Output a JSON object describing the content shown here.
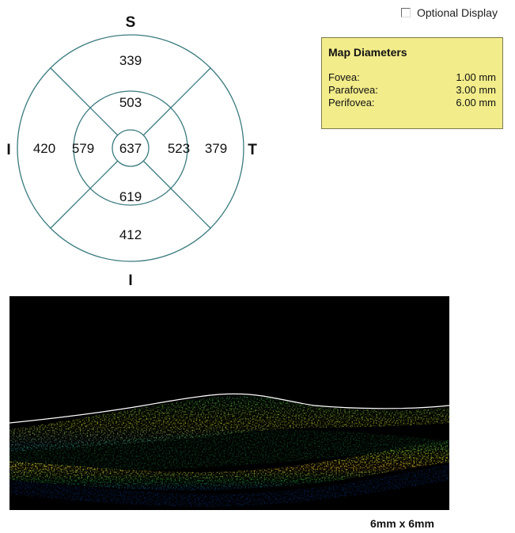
{
  "optional_display": {
    "label": "Optional Display",
    "checked": false
  },
  "map_diameters": {
    "title": "Map Diameters",
    "rows": [
      {
        "label": "Fovea:",
        "value": "1.00 mm"
      },
      {
        "label": "Parafovea:",
        "value": "3.00 mm"
      },
      {
        "label": "Perifovea:",
        "value": "6.00 mm"
      }
    ]
  },
  "etdrs_grid": {
    "labels": {
      "superior": "S",
      "inferior": "I",
      "nasal": "I",
      "temporal": "T"
    },
    "center": "637",
    "inner": {
      "superior": "503",
      "nasal": "579",
      "temporal": "523",
      "inferior": "619"
    },
    "outer": {
      "superior": "339",
      "nasal": "420",
      "temporal": "379",
      "inferior": "412"
    },
    "colors": {
      "lines": "#3a7a7e"
    }
  },
  "oct_scan": {
    "scale_label": "6mm x 6mm"
  }
}
